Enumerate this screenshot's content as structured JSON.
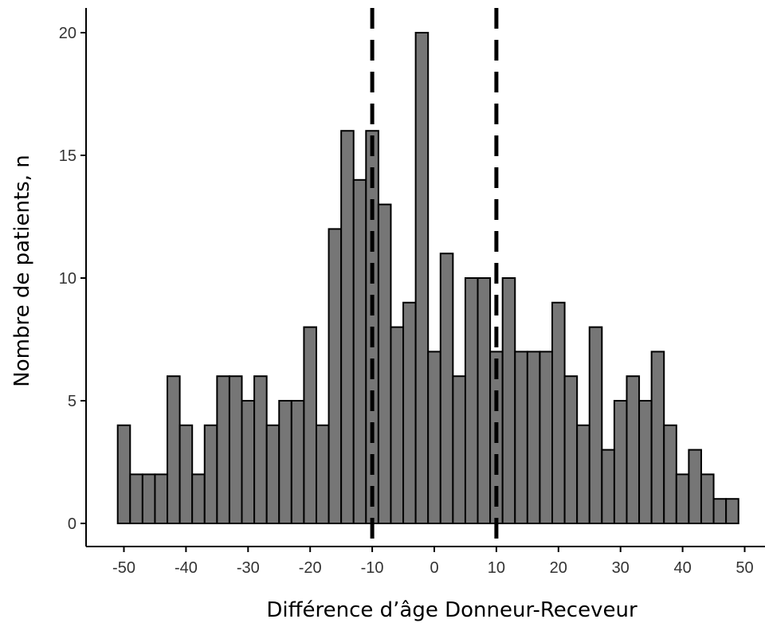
{
  "chart_data": {
    "type": "bar",
    "subtype": "histogram",
    "title": "",
    "xlabel": "Différence d’âge Donneur-Receveur",
    "ylabel": "Nombre de patients, n",
    "xlim": [
      -53,
      52
    ],
    "ylim": [
      0,
      20
    ],
    "xticks": [
      -50,
      -40,
      -30,
      -20,
      -10,
      0,
      10,
      20,
      30,
      40,
      50
    ],
    "yticks": [
      0,
      5,
      10,
      15,
      20
    ],
    "grid": false,
    "legend": "none",
    "bin_width": 2,
    "bins": [
      {
        "x": -50,
        "count": 4
      },
      {
        "x": -48,
        "count": 2
      },
      {
        "x": -46,
        "count": 2
      },
      {
        "x": -44,
        "count": 2
      },
      {
        "x": -42,
        "count": 6
      },
      {
        "x": -40,
        "count": 4
      },
      {
        "x": -38,
        "count": 2
      },
      {
        "x": -36,
        "count": 4
      },
      {
        "x": -34,
        "count": 6
      },
      {
        "x": -32,
        "count": 6
      },
      {
        "x": -30,
        "count": 5
      },
      {
        "x": -28,
        "count": 6
      },
      {
        "x": -26,
        "count": 4
      },
      {
        "x": -24,
        "count": 5
      },
      {
        "x": -22,
        "count": 5
      },
      {
        "x": -20,
        "count": 8
      },
      {
        "x": -18,
        "count": 4
      },
      {
        "x": -16,
        "count": 12
      },
      {
        "x": -14,
        "count": 16
      },
      {
        "x": -12,
        "count": 14
      },
      {
        "x": -10,
        "count": 16
      },
      {
        "x": -8,
        "count": 13
      },
      {
        "x": -6,
        "count": 8
      },
      {
        "x": -4,
        "count": 9
      },
      {
        "x": -2,
        "count": 20
      },
      {
        "x": 0,
        "count": 7
      },
      {
        "x": 2,
        "count": 11
      },
      {
        "x": 4,
        "count": 6
      },
      {
        "x": 6,
        "count": 10
      },
      {
        "x": 8,
        "count": 10
      },
      {
        "x": 10,
        "count": 7
      },
      {
        "x": 12,
        "count": 10
      },
      {
        "x": 14,
        "count": 7
      },
      {
        "x": 16,
        "count": 7
      },
      {
        "x": 18,
        "count": 7
      },
      {
        "x": 20,
        "count": 9
      },
      {
        "x": 22,
        "count": 6
      },
      {
        "x": 24,
        "count": 4
      },
      {
        "x": 26,
        "count": 8
      },
      {
        "x": 28,
        "count": 3
      },
      {
        "x": 30,
        "count": 5
      },
      {
        "x": 32,
        "count": 6
      },
      {
        "x": 34,
        "count": 5
      },
      {
        "x": 36,
        "count": 7
      },
      {
        "x": 38,
        "count": 4
      },
      {
        "x": 40,
        "count": 2
      },
      {
        "x": 42,
        "count": 3
      },
      {
        "x": 44,
        "count": 2
      },
      {
        "x": 46,
        "count": 1
      },
      {
        "x": 48,
        "count": 1
      }
    ],
    "reference_lines": [
      {
        "x": -10,
        "style": "dashed"
      },
      {
        "x": 10,
        "style": "dashed"
      }
    ],
    "colors": {
      "bar_fill": "#767676",
      "bar_stroke": "#000000",
      "axis": "#000000",
      "tick_text": "#333333"
    }
  }
}
